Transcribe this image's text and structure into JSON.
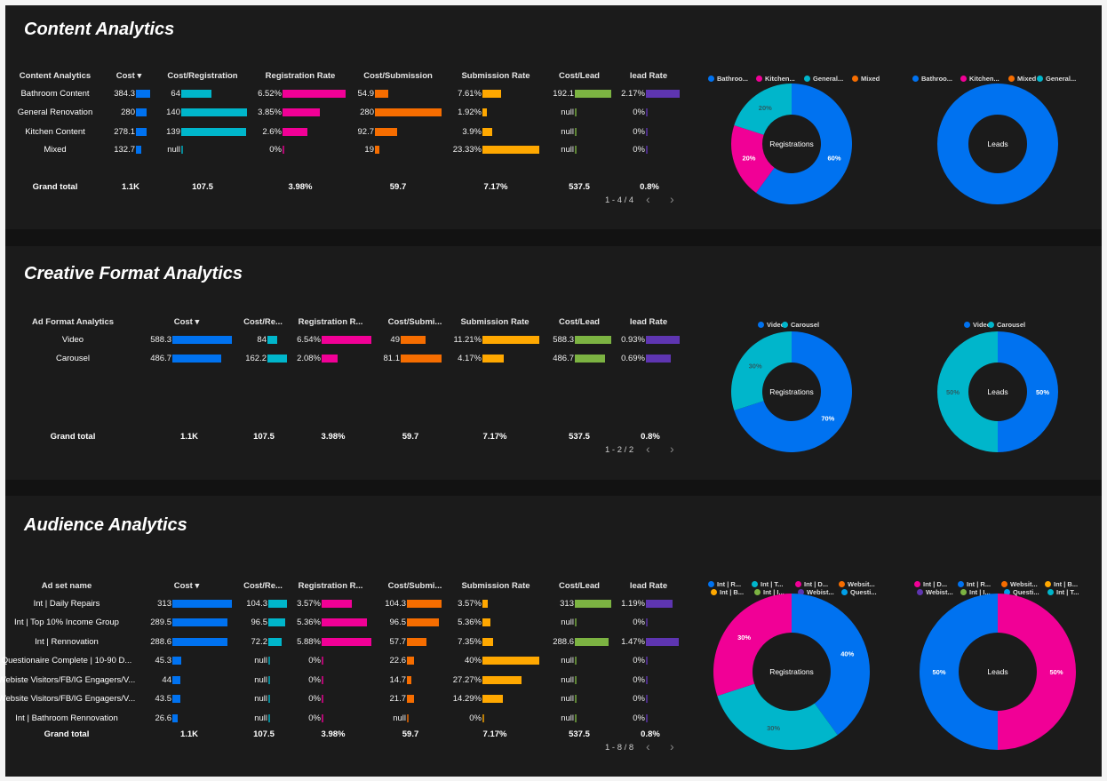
{
  "colors": {
    "cost": "#0072f0",
    "cost_reg": "#00b6cb",
    "reg_rate": "#f10096",
    "cost_sub": "#f66d00",
    "sub_rate": "#ffa800",
    "cost_lead": "#7cb342",
    "lead_rate": "#5e35b1",
    "light_blue": "#00a0e9"
  },
  "sections": [
    {
      "title": "Content Analytics",
      "table": {
        "headers": [
          "Content Analytics",
          "Cost ▾",
          "Cost/Registration",
          "Registration Rate",
          "Cost/Submission",
          "Submission Rate",
          "Cost/Lead",
          "lead Rate"
        ],
        "rows": [
          [
            "Bathroom Content",
            "384.3",
            "64",
            "6.52%",
            "54.9",
            "7.61%",
            "192.1",
            "2.17%"
          ],
          [
            "General Renovation",
            "280",
            "140",
            "3.85%",
            "280",
            "1.92%",
            "null",
            "0%"
          ],
          [
            "Kitchen Content",
            "278.1",
            "139",
            "2.6%",
            "92.7",
            "3.9%",
            "null",
            "0%"
          ],
          [
            "Mixed",
            "132.7",
            "null",
            "0%",
            "19",
            "23.33%",
            "null",
            "0%"
          ]
        ],
        "totals": [
          "Grand total",
          "1.1K",
          "107.5",
          "3.98%",
          "59.7",
          "7.17%",
          "537.5",
          "0.8%"
        ],
        "pager": "1 - 4 / 4"
      },
      "donuts": [
        {
          "center_label": "Registrations",
          "legend": [
            [
              "Bathroo...",
              "cost"
            ],
            [
              "Kitchen...",
              "reg_rate"
            ],
            [
              "General...",
              "cost_reg"
            ],
            [
              "Mixed",
              "cost_sub"
            ]
          ],
          "slices": [
            {
              "name": "Bathroom Content",
              "value": 60,
              "label": "60%",
              "color": "cost"
            },
            {
              "name": "Kitchen Content",
              "value": 20,
              "label": "20%",
              "color": "reg_rate"
            },
            {
              "name": "General Renovation",
              "value": 20,
              "label": "20%",
              "color": "cost_reg"
            }
          ]
        },
        {
          "center_label": "Leads",
          "legend": [
            [
              "Bathroo...",
              "cost"
            ],
            [
              "Kitchen...",
              "reg_rate"
            ],
            [
              "Mixed",
              "cost_sub"
            ],
            [
              "General...",
              "cost_reg"
            ]
          ],
          "slices": [
            {
              "name": "Bathroom Content",
              "value": 100,
              "label": "",
              "color": "cost"
            }
          ]
        }
      ]
    },
    {
      "title": "Creative Format Analytics",
      "table": {
        "headers": [
          "Ad Format Analytics",
          "Cost ▾",
          "Cost/Re...",
          "Registration R...",
          "Cost/Submi...",
          "Submission Rate",
          "Cost/Lead",
          "lead Rate"
        ],
        "rows": [
          [
            "Video",
            "588.3",
            "84",
            "6.54%",
            "49",
            "11.21%",
            "588.3",
            "0.93%"
          ],
          [
            "Carousel",
            "486.7",
            "162.2",
            "2.08%",
            "81.1",
            "4.17%",
            "486.7",
            "0.69%"
          ]
        ],
        "totals": [
          "Grand total",
          "1.1K",
          "107.5",
          "3.98%",
          "59.7",
          "7.17%",
          "537.5",
          "0.8%"
        ],
        "pager": "1 - 2 / 2"
      },
      "donuts": [
        {
          "center_label": "Registrations",
          "legend": [
            [
              "Video",
              "cost"
            ],
            [
              "Carousel",
              "cost_reg"
            ]
          ],
          "slices": [
            {
              "name": "Video",
              "value": 70,
              "label": "70%",
              "color": "cost"
            },
            {
              "name": "Carousel",
              "value": 30,
              "label": "30%",
              "color": "cost_reg"
            }
          ]
        },
        {
          "center_label": "Leads",
          "legend": [
            [
              "Video",
              "cost"
            ],
            [
              "Carousel",
              "cost_reg"
            ]
          ],
          "slices": [
            {
              "name": "Video",
              "value": 50,
              "label": "50%",
              "color": "cost"
            },
            {
              "name": "Carousel",
              "value": 50,
              "label": "50%",
              "color": "cost_reg"
            }
          ]
        }
      ]
    },
    {
      "title": "Audience Analytics",
      "table": {
        "headers": [
          "Ad set name",
          "Cost ▾",
          "Cost/Re...",
          "Registration R...",
          "Cost/Submi...",
          "Submission Rate",
          "Cost/Lead",
          "lead Rate"
        ],
        "rows": [
          [
            "Int | Daily Repairs",
            "313",
            "104.3",
            "3.57%",
            "104.3",
            "3.57%",
            "313",
            "1.19%"
          ],
          [
            "Int | Top 10% Income Group",
            "289.5",
            "96.5",
            "5.36%",
            "96.5",
            "5.36%",
            "null",
            "0%"
          ],
          [
            "Int | Rennovation",
            "288.6",
            "72.2",
            "5.88%",
            "57.7",
            "7.35%",
            "288.6",
            "1.47%"
          ],
          [
            "Questionaire Complete | 10-90 D...",
            "45.3",
            "null",
            "0%",
            "22.6",
            "40%",
            "null",
            "0%"
          ],
          [
            "Webiste Visitors/FB/IG Engagers/V...",
            "44",
            "null",
            "0%",
            "14.7",
            "27.27%",
            "null",
            "0%"
          ],
          [
            "Website Visitors/FB/IG Engagers/V...",
            "43.5",
            "null",
            "0%",
            "21.7",
            "14.29%",
            "null",
            "0%"
          ],
          [
            "Int | Bathroom Rennovation",
            "26.6",
            "null",
            "0%",
            "null",
            "0%",
            "null",
            "0%"
          ]
        ],
        "totals": [
          "Grand total",
          "1.1K",
          "107.5",
          "3.98%",
          "59.7",
          "7.17%",
          "537.5",
          "0.8%"
        ],
        "pager": "1 - 8 / 8"
      },
      "donuts": [
        {
          "center_label": "Registrations",
          "legend": [
            [
              "Int | R...",
              "cost"
            ],
            [
              "Int | T...",
              "cost_reg"
            ],
            [
              "Int | D...",
              "reg_rate"
            ],
            [
              "Websit...",
              "cost_sub"
            ],
            [
              "Int | B...",
              "sub_rate"
            ],
            [
              "Int | I...",
              "cost_lead"
            ],
            [
              "Webist...",
              "lead_rate"
            ],
            [
              "Questi...",
              "light_blue"
            ]
          ],
          "slices": [
            {
              "name": "Int | Rennovation",
              "value": 40,
              "label": "40%",
              "color": "cost"
            },
            {
              "name": "Int | Top 10% Income Group",
              "value": 30,
              "label": "30%",
              "color": "cost_reg"
            },
            {
              "name": "Int | Daily Repairs",
              "value": 30,
              "label": "30%",
              "color": "reg_rate"
            }
          ]
        },
        {
          "center_label": "Leads",
          "legend": [
            [
              "Int | D...",
              "reg_rate"
            ],
            [
              "Int | R...",
              "cost"
            ],
            [
              "Websit...",
              "cost_sub"
            ],
            [
              "Int | B...",
              "sub_rate"
            ],
            [
              "Webist...",
              "lead_rate"
            ],
            [
              "Int | I...",
              "cost_lead"
            ],
            [
              "Questi...",
              "light_blue"
            ],
            [
              "Int | T...",
              "cost_reg"
            ]
          ],
          "slices": [
            {
              "name": "Int | Daily Repairs",
              "value": 50,
              "label": "50%",
              "color": "reg_rate"
            },
            {
              "name": "Int | Rennovation",
              "value": 50,
              "label": "50%",
              "color": "cost"
            }
          ]
        }
      ]
    }
  ]
}
